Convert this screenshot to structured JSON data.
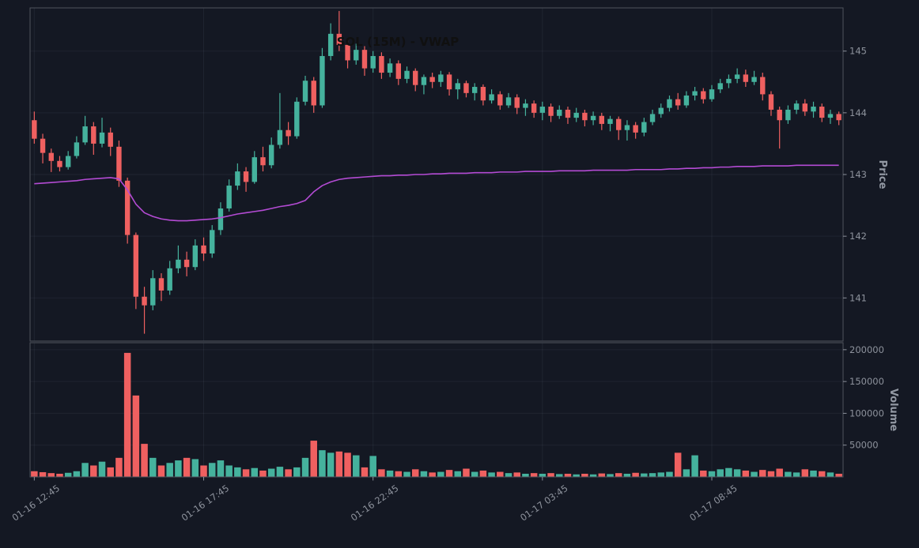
{
  "title": "SOL (15M) - VWAP",
  "colors": {
    "background": "#141823",
    "up": "#45b29d",
    "down": "#ef6060",
    "vwap": "#b44bd4",
    "grid": "rgba(140,150,170,0.10)",
    "spine": "#4f545e",
    "tick_text": "#8d929c",
    "axis_label": "#9298a3",
    "title_text": "#101010"
  },
  "chart_data": {
    "type": "candlestick",
    "title": "SOL (15M) - VWAP",
    "price_label": "Price",
    "volume_label": "Volume",
    "legend_position": "none",
    "grid": true,
    "x_tick_labels": [
      "01-16 12:45",
      "01-16 17:45",
      "01-16 22:45",
      "01-17 03:45",
      "01-17 08:45"
    ],
    "x_tick_indices": [
      0,
      20,
      40,
      60,
      80
    ],
    "price_ylim": [
      140.3,
      145.7
    ],
    "price_ticks": [
      141,
      142,
      143,
      144,
      145
    ],
    "volume_ylim": [
      0,
      211000
    ],
    "volume_ticks": [
      50000,
      100000,
      150000,
      200000
    ],
    "ohlc": [
      [
        143.88,
        144.02,
        143.5,
        143.58
      ],
      [
        143.58,
        143.66,
        143.18,
        143.35
      ],
      [
        143.35,
        143.42,
        143.04,
        143.22
      ],
      [
        143.22,
        143.3,
        143.05,
        143.12
      ],
      [
        143.12,
        143.38,
        143.08,
        143.3
      ],
      [
        143.3,
        143.62,
        143.26,
        143.52
      ],
      [
        143.52,
        143.95,
        143.48,
        143.78
      ],
      [
        143.78,
        143.85,
        143.32,
        143.5
      ],
      [
        143.5,
        143.92,
        143.44,
        143.68
      ],
      [
        143.68,
        143.76,
        143.3,
        143.45
      ],
      [
        143.45,
        143.55,
        142.8,
        142.9
      ],
      [
        142.9,
        142.95,
        141.88,
        142.02
      ],
      [
        142.02,
        142.06,
        140.82,
        141.02
      ],
      [
        141.02,
        141.18,
        140.42,
        140.88
      ],
      [
        140.88,
        141.45,
        140.8,
        141.32
      ],
      [
        141.32,
        141.4,
        140.95,
        141.12
      ],
      [
        141.12,
        141.6,
        141.05,
        141.48
      ],
      [
        141.48,
        141.85,
        141.4,
        141.62
      ],
      [
        141.62,
        141.75,
        141.35,
        141.5
      ],
      [
        141.5,
        141.95,
        141.45,
        141.85
      ],
      [
        141.85,
        141.98,
        141.6,
        141.72
      ],
      [
        141.72,
        142.18,
        141.65,
        142.1
      ],
      [
        142.1,
        142.55,
        142.02,
        142.45
      ],
      [
        142.45,
        142.92,
        142.4,
        142.82
      ],
      [
        142.82,
        143.18,
        142.75,
        143.05
      ],
      [
        143.05,
        143.12,
        142.72,
        142.88
      ],
      [
        142.88,
        143.38,
        142.85,
        143.28
      ],
      [
        143.28,
        143.45,
        143.05,
        143.15
      ],
      [
        143.15,
        143.6,
        143.1,
        143.48
      ],
      [
        143.48,
        144.32,
        143.42,
        143.72
      ],
      [
        143.72,
        143.85,
        143.48,
        143.62
      ],
      [
        143.62,
        144.25,
        143.58,
        144.18
      ],
      [
        144.18,
        144.6,
        144.12,
        144.52
      ],
      [
        144.52,
        144.58,
        144.0,
        144.12
      ],
      [
        144.12,
        145.05,
        144.08,
        144.92
      ],
      [
        144.92,
        145.45,
        144.85,
        145.28
      ],
      [
        145.28,
        145.65,
        145.0,
        145.1
      ],
      [
        145.1,
        145.18,
        144.72,
        144.85
      ],
      [
        144.85,
        145.12,
        144.78,
        145.02
      ],
      [
        145.02,
        145.08,
        144.6,
        144.72
      ],
      [
        144.72,
        145.0,
        144.65,
        144.92
      ],
      [
        144.92,
        144.98,
        144.55,
        144.65
      ],
      [
        144.65,
        144.88,
        144.58,
        144.8
      ],
      [
        144.8,
        144.85,
        144.45,
        144.55
      ],
      [
        144.55,
        144.75,
        144.48,
        144.68
      ],
      [
        144.68,
        144.72,
        144.35,
        144.45
      ],
      [
        144.45,
        144.62,
        144.3,
        144.58
      ],
      [
        144.58,
        144.65,
        144.4,
        144.5
      ],
      [
        144.5,
        144.68,
        144.42,
        144.62
      ],
      [
        144.62,
        144.66,
        144.28,
        144.38
      ],
      [
        144.38,
        144.55,
        144.22,
        144.48
      ],
      [
        144.48,
        144.52,
        144.25,
        144.32
      ],
      [
        144.32,
        144.48,
        144.2,
        144.42
      ],
      [
        144.42,
        144.46,
        144.12,
        144.2
      ],
      [
        144.2,
        144.38,
        144.15,
        144.3
      ],
      [
        144.3,
        144.35,
        144.05,
        144.12
      ],
      [
        144.12,
        144.32,
        144.08,
        144.25
      ],
      [
        144.25,
        144.3,
        143.98,
        144.08
      ],
      [
        144.08,
        144.22,
        143.95,
        144.15
      ],
      [
        144.15,
        144.2,
        143.92,
        144.0
      ],
      [
        144.0,
        144.18,
        143.88,
        144.1
      ],
      [
        144.1,
        144.15,
        143.85,
        143.95
      ],
      [
        143.95,
        144.12,
        143.9,
        144.05
      ],
      [
        144.05,
        144.1,
        143.82,
        143.92
      ],
      [
        143.92,
        144.08,
        143.85,
        144.0
      ],
      [
        144.0,
        144.05,
        143.78,
        143.88
      ],
      [
        143.88,
        144.02,
        143.8,
        143.95
      ],
      [
        143.95,
        144.0,
        143.72,
        143.82
      ],
      [
        143.82,
        143.95,
        143.7,
        143.9
      ],
      [
        143.9,
        143.94,
        143.56,
        143.72
      ],
      [
        143.72,
        143.88,
        143.55,
        143.8
      ],
      [
        143.8,
        143.85,
        143.58,
        143.68
      ],
      [
        143.68,
        143.92,
        143.62,
        143.85
      ],
      [
        143.85,
        144.05,
        143.8,
        143.98
      ],
      [
        143.98,
        144.15,
        143.92,
        144.08
      ],
      [
        144.08,
        144.28,
        144.02,
        144.22
      ],
      [
        144.22,
        144.32,
        144.05,
        144.12
      ],
      [
        144.12,
        144.35,
        144.08,
        144.28
      ],
      [
        144.28,
        144.42,
        144.2,
        144.35
      ],
      [
        144.35,
        144.4,
        144.15,
        144.22
      ],
      [
        144.22,
        144.45,
        144.18,
        144.38
      ],
      [
        144.38,
        144.55,
        144.32,
        144.48
      ],
      [
        144.48,
        144.62,
        144.4,
        144.55
      ],
      [
        144.55,
        144.72,
        144.48,
        144.62
      ],
      [
        144.62,
        144.7,
        144.42,
        144.5
      ],
      [
        144.5,
        144.68,
        144.45,
        144.58
      ],
      [
        144.58,
        144.65,
        144.2,
        144.3
      ],
      [
        144.3,
        144.35,
        143.95,
        144.05
      ],
      [
        144.05,
        144.1,
        143.42,
        143.88
      ],
      [
        143.88,
        144.12,
        143.82,
        144.05
      ],
      [
        144.05,
        144.2,
        143.98,
        144.15
      ],
      [
        144.15,
        144.22,
        143.95,
        144.02
      ],
      [
        144.02,
        144.18,
        143.92,
        144.1
      ],
      [
        144.1,
        144.15,
        143.85,
        143.92
      ],
      [
        143.92,
        144.05,
        143.82,
        143.98
      ],
      [
        143.98,
        144.02,
        143.8,
        143.88
      ]
    ],
    "volume": [
      9000,
      7500,
      6000,
      5000,
      6500,
      9000,
      22000,
      18000,
      24000,
      15000,
      30000,
      195000,
      128000,
      52000,
      30000,
      18000,
      22000,
      26000,
      30000,
      28000,
      18000,
      22000,
      26000,
      18000,
      15000,
      12000,
      14000,
      10000,
      13000,
      16000,
      12000,
      15000,
      30000,
      57000,
      42000,
      38000,
      40000,
      38000,
      34000,
      15000,
      33000,
      12000,
      10000,
      9000,
      8000,
      12000,
      9000,
      7000,
      8000,
      11000,
      9000,
      13000,
      8000,
      10000,
      7000,
      8000,
      6000,
      7000,
      5000,
      6000,
      5000,
      6000,
      4500,
      5000,
      4000,
      5000,
      4000,
      5500,
      4500,
      6000,
      5000,
      6500,
      5500,
      6000,
      7000,
      8000,
      38000,
      12000,
      34000,
      10000,
      9000,
      12000,
      14000,
      12000,
      10000,
      8000,
      11000,
      9000,
      13000,
      8000,
      7000,
      12000,
      10000,
      9000,
      7000,
      5000
    ],
    "overlays": [
      {
        "name": "VWAP",
        "color": "#b44bd4",
        "values": [
          142.85,
          142.86,
          142.87,
          142.88,
          142.89,
          142.9,
          142.92,
          142.93,
          142.94,
          142.95,
          142.93,
          142.75,
          142.52,
          142.38,
          142.32,
          142.28,
          142.26,
          142.25,
          142.25,
          142.26,
          142.27,
          142.28,
          142.3,
          142.33,
          142.36,
          142.38,
          142.4,
          142.42,
          142.45,
          142.48,
          142.5,
          142.53,
          142.58,
          142.72,
          142.82,
          142.88,
          142.92,
          142.94,
          142.95,
          142.96,
          142.97,
          142.98,
          142.98,
          142.99,
          142.99,
          143.0,
          143.0,
          143.01,
          143.01,
          143.02,
          143.02,
          143.02,
          143.03,
          143.03,
          143.03,
          143.04,
          143.04,
          143.04,
          143.05,
          143.05,
          143.05,
          143.05,
          143.06,
          143.06,
          143.06,
          143.06,
          143.07,
          143.07,
          143.07,
          143.07,
          143.07,
          143.08,
          143.08,
          143.08,
          143.08,
          143.09,
          143.09,
          143.1,
          143.1,
          143.11,
          143.11,
          143.12,
          143.12,
          143.13,
          143.13,
          143.13,
          143.14,
          143.14,
          143.14,
          143.14,
          143.15,
          143.15,
          143.15,
          143.15,
          143.15,
          143.15
        ]
      }
    ]
  }
}
